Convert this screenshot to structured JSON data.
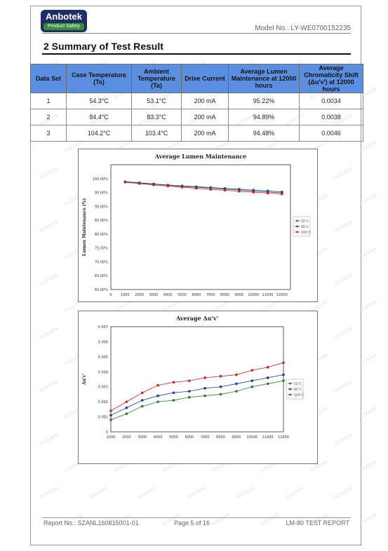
{
  "header": {
    "logo_brand": "Anbotek",
    "logo_tagline": "Product Safety",
    "model_no": "Model No.: LY-WE0700152235"
  },
  "section_title": "2 Summary of Test Result",
  "table": {
    "headers": [
      "Data Set",
      "Case Temperature (Ts)",
      "Ambient Temperature (Ta)",
      "Drive Current",
      "Average Lumen Maintenance at 12000 hours",
      "Average Chromaticity Shift (Δu'v') at 12000 hours"
    ],
    "rows": [
      [
        "1",
        "54.3°C",
        "53.1°C",
        "200 mA",
        "95.22%",
        "0.0034"
      ],
      [
        "2",
        "84.4°C",
        "83.3°C",
        "200 mA",
        "94.89%",
        "0.0038"
      ],
      [
        "3",
        "104.2°C",
        "103.4°C",
        "200 mA",
        "94.48%",
        "0.0046"
      ]
    ]
  },
  "chart_data": [
    {
      "type": "line",
      "title": "Average Lumen Maintenance",
      "ylabel": "Lumen Maintenance (%)",
      "xlabel": "",
      "x": [
        1000,
        2000,
        3000,
        4000,
        5000,
        6000,
        7000,
        8000,
        9000,
        10000,
        11000,
        12000
      ],
      "x_tick_labels": [
        "0",
        "1000",
        "2000",
        "3000",
        "4000",
        "5000",
        "6000",
        "7000",
        "8000",
        "9000",
        "10000",
        "11000",
        "12000"
      ],
      "y_tick_labels": [
        "100.00%",
        "95.00%",
        "90.00%",
        "85.00%",
        "80.00%",
        "75.00%",
        "70.00%",
        "65.00%",
        "60.00%"
      ],
      "ylim": [
        60,
        105
      ],
      "xlim": [
        0,
        12600
      ],
      "grid": false,
      "legend": "right",
      "series": [
        {
          "name": "55°C",
          "color": "#2a7a2a",
          "values": [
            98.9,
            98.5,
            98.1,
            97.7,
            97.4,
            97.1,
            96.8,
            96.5,
            96.2,
            95.9,
            95.6,
            95.22
          ]
        },
        {
          "name": "85°C",
          "color": "#2233aa",
          "values": [
            98.8,
            98.4,
            98.0,
            97.6,
            97.2,
            96.9,
            96.6,
            96.2,
            95.9,
            95.5,
            95.2,
            94.89
          ]
        },
        {
          "name": "105°C",
          "color": "#cc2222",
          "values": [
            98.7,
            98.2,
            97.7,
            97.3,
            96.9,
            96.5,
            96.1,
            95.8,
            95.4,
            95.1,
            94.8,
            94.48
          ]
        }
      ]
    },
    {
      "type": "line",
      "title": "Average Δu'v'",
      "ylabel": "Δu'v'",
      "xlabel": "",
      "x": [
        1000,
        2000,
        3000,
        4000,
        5000,
        6000,
        7000,
        8000,
        9000,
        10000,
        11000,
        12000
      ],
      "x_tick_labels": [
        "1000",
        "2000",
        "3000",
        "4000",
        "5000",
        "6000",
        "7000",
        "8000",
        "9000",
        "10000",
        "11000",
        "12000"
      ],
      "y_tick_labels": [
        "0",
        "0.001",
        "0.002",
        "0.003",
        "0.004",
        "0.005",
        "0.006",
        "0.007"
      ],
      "ylim": [
        0,
        0.007
      ],
      "xlim": [
        1000,
        12000
      ],
      "grid": false,
      "legend": "right",
      "series": [
        {
          "name": "55°C",
          "color": "#2a7a2a",
          "values": [
            0.0008,
            0.0012,
            0.0017,
            0.002,
            0.0021,
            0.0023,
            0.0024,
            0.0025,
            0.0027,
            0.003,
            0.0032,
            0.0034
          ]
        },
        {
          "name": "85°C",
          "color": "#2233aa",
          "values": [
            0.0011,
            0.0016,
            0.0021,
            0.0024,
            0.0026,
            0.0027,
            0.0029,
            0.003,
            0.0032,
            0.0034,
            0.0036,
            0.0038
          ]
        },
        {
          "name": "105°C",
          "color": "#cc2222",
          "values": [
            0.0014,
            0.002,
            0.0026,
            0.0031,
            0.0033,
            0.0034,
            0.0036,
            0.0037,
            0.0038,
            0.0041,
            0.0043,
            0.0046
          ]
        }
      ]
    }
  ],
  "footer": {
    "report_no": "Report No.: SZANL160815001-01",
    "page": "Page 5 of 16",
    "report_type": "LM-80 TEST REPORT"
  },
  "watermark": "Anbotek"
}
